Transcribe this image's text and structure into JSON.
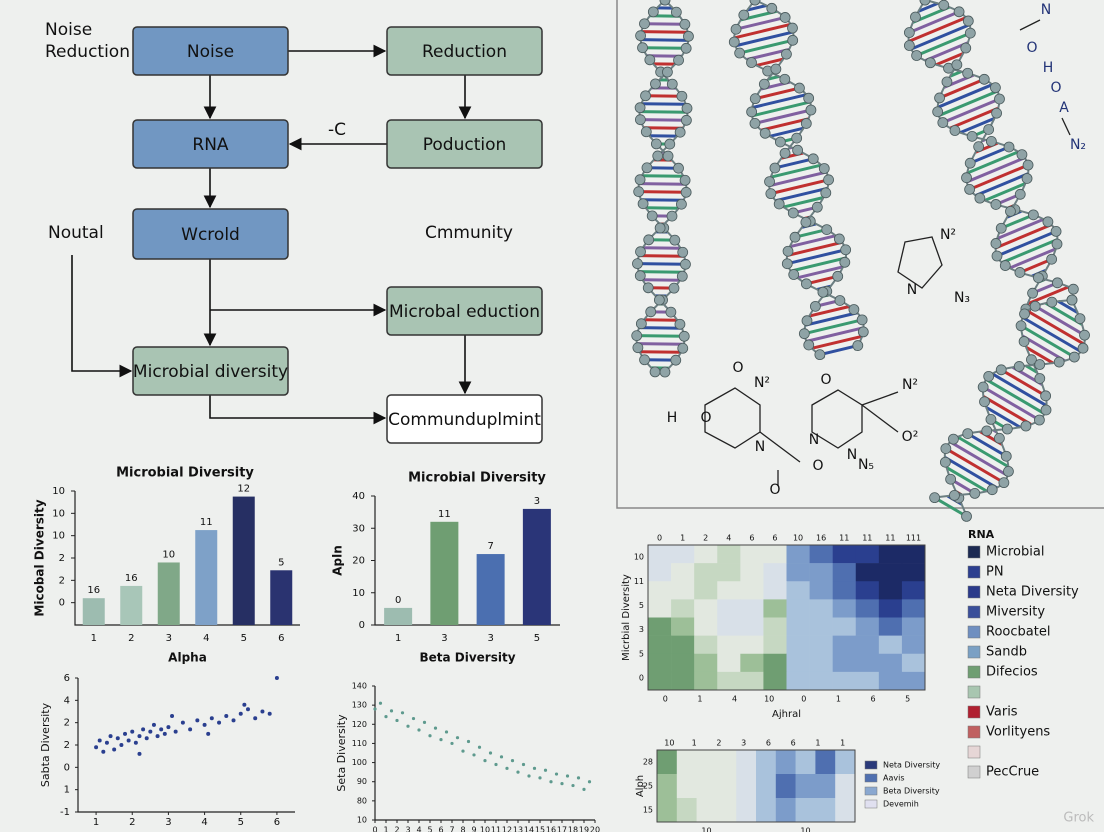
{
  "flowchart": {
    "nodes": [
      {
        "label": "Noise"
      },
      {
        "label": "Reduction"
      },
      {
        "label": "RNA"
      },
      {
        "label": "Poduction"
      },
      {
        "label": "Wcrold"
      },
      {
        "label": "Microbal eduction"
      },
      {
        "label": "Microbial diversity"
      },
      {
        "label": "Communduplmint"
      }
    ],
    "annotations": [
      "Noise",
      "Reduction",
      "-C",
      "Noutal",
      "Cmmunity"
    ]
  },
  "chem_labels": [
    "N",
    "O",
    "H",
    "O",
    "A",
    "N₂",
    "N²",
    "N",
    "N₃",
    "O",
    "N²",
    "H",
    "O",
    "N",
    "O",
    "O",
    "N²",
    "N",
    "O²",
    "N₅",
    "N",
    "O"
  ],
  "bar_chart_1": {
    "type": "bar",
    "title": "Microbial Diversity",
    "y_label": "Micobal Diversity",
    "x_label": "Alpha",
    "categories": [
      "1",
      "2",
      "3",
      "4",
      "5",
      "6"
    ],
    "values": [
      2.4,
      3.5,
      5.6,
      8.5,
      11.5,
      4.9
    ],
    "colors": [
      "#9dbcb0",
      "#a8c6b8",
      "#80a888",
      "#7ea1c8",
      "#262f63",
      "#2a3370"
    ],
    "annotations": [
      "16",
      "16",
      "10",
      "11",
      "12",
      "5"
    ],
    "ylim": [
      0,
      12
    ],
    "yticks": [
      {
        "value": 12,
        "label": "10"
      },
      10,
      {
        "value": 8,
        "label": "10"
      },
      {
        "value": 6,
        "label": "2"
      },
      {
        "value": 4,
        "label": "2"
      },
      {
        "value": 2,
        "label": "0"
      }
    ]
  },
  "bar_chart_2": {
    "type": "bar",
    "title": "Microbial Diversity",
    "y_label": "Apln",
    "x_label": "Beta Diversity",
    "categories": [
      "1",
      "3",
      "3",
      "5"
    ],
    "values": [
      5.3,
      32,
      22,
      36
    ],
    "colors": [
      "#9dbcb0",
      "#6f9e72",
      "#4b6fb0",
      "#2a3578"
    ],
    "annotations": [
      "0",
      "11",
      "7",
      "3"
    ],
    "ylim": [
      0,
      40
    ],
    "yticks": [
      40,
      30,
      20,
      10,
      0
    ]
  },
  "scatter_1": {
    "type": "scatter",
    "y_label": "Sabta Diversity",
    "color": "#2a3f8f",
    "xlim": [
      0.5,
      6.5
    ],
    "xticks": [
      1,
      2,
      3,
      4,
      5,
      6
    ],
    "ylim": [
      0,
      6
    ],
    "yticks": [
      6,
      {
        "value": 5,
        "label": "4"
      },
      {
        "value": 4,
        "label": "2"
      },
      {
        "value": 3,
        "label": "2"
      },
      {
        "value": 2,
        "label": "0"
      },
      1,
      {
        "value": 0,
        "label": "-1"
      }
    ],
    "x": [
      1.0,
      1.1,
      1.2,
      1.3,
      1.4,
      1.5,
      1.6,
      1.7,
      1.8,
      1.9,
      2.0,
      2.1,
      2.2,
      2.3,
      2.4,
      2.5,
      2.6,
      2.7,
      2.8,
      2.9,
      3.0,
      3.2,
      3.4,
      3.6,
      3.8,
      4.0,
      4.2,
      4.4,
      4.6,
      4.8,
      5.0,
      5.2,
      5.4,
      5.6,
      5.8,
      6.0,
      2.2,
      3.1,
      4.1,
      5.1
    ],
    "y": [
      2.9,
      3.2,
      2.7,
      3.1,
      3.4,
      2.8,
      3.3,
      3.0,
      3.5,
      3.2,
      3.6,
      3.1,
      3.4,
      3.7,
      3.3,
      3.6,
      3.9,
      3.4,
      3.7,
      3.5,
      3.8,
      3.6,
      4.0,
      3.7,
      4.1,
      3.9,
      4.2,
      4.0,
      4.3,
      4.1,
      4.4,
      4.6,
      4.2,
      4.5,
      4.4,
      6.0,
      2.6,
      4.3,
      3.5,
      4.8
    ]
  },
  "scatter_2": {
    "type": "scatter",
    "y_label": "Seta Diversity",
    "color": "#5e9a8e",
    "xlim": [
      0,
      20
    ],
    "xticks": [
      0,
      1,
      2,
      3,
      4,
      5,
      6,
      7,
      8,
      9,
      10,
      11,
      12,
      13,
      14,
      15,
      16,
      17,
      18,
      19,
      20
    ],
    "ylim": [
      70,
      140
    ],
    "yticks": [
      140,
      130,
      120,
      110,
      100,
      90,
      80,
      {
        "value": 70,
        "label": "10"
      }
    ],
    "x": [
      0,
      0.5,
      1,
      1.5,
      2,
      2.5,
      3,
      3.5,
      4,
      4.5,
      5,
      5.5,
      6,
      6.5,
      7,
      7.5,
      8,
      8.5,
      9,
      9.5,
      10,
      10.5,
      11,
      11.5,
      12,
      12.5,
      13,
      13.5,
      14,
      14.5,
      15,
      15.5,
      16,
      16.5,
      17,
      17.5,
      18,
      18.5,
      19,
      19.5
    ],
    "y": [
      128,
      131,
      124,
      127,
      122,
      126,
      119,
      123,
      117,
      121,
      114,
      118,
      112,
      116,
      110,
      113,
      106,
      111,
      104,
      108,
      101,
      105,
      99,
      103,
      97,
      101,
      95,
      99,
      93,
      97,
      92,
      96,
      90,
      94,
      89,
      93,
      88,
      92,
      86,
      90
    ]
  },
  "heatmap": {
    "type": "heatmap",
    "y_label": "Micrbial Diversity",
    "x_label": "Ajhral",
    "top_labels": [
      "0",
      "1",
      "2",
      "4",
      "6",
      "6",
      "10",
      "16",
      "11",
      "11",
      "11",
      "111"
    ],
    "bottom_labels": [
      "0",
      "1",
      "4",
      "10",
      "0",
      "1",
      "6",
      "5"
    ],
    "row_labels": [
      "10",
      "11",
      "5",
      "3",
      "5",
      "0"
    ],
    "values": [
      [
        5,
        5,
        4,
        3,
        4,
        4,
        7,
        8,
        9,
        9,
        10,
        10
      ],
      [
        5,
        4,
        3,
        3,
        4,
        5,
        7,
        7,
        8,
        10,
        10,
        10
      ],
      [
        4,
        4,
        3,
        4,
        4,
        5,
        6,
        7,
        8,
        9,
        10,
        9
      ],
      [
        4,
        3,
        4,
        5,
        5,
        2,
        6,
        6,
        7,
        8,
        9,
        8
      ],
      [
        1,
        2,
        4,
        5,
        5,
        3,
        6,
        6,
        6,
        7,
        8,
        7
      ],
      [
        1,
        1,
        3,
        4,
        4,
        3,
        6,
        6,
        7,
        7,
        6,
        7
      ],
      [
        1,
        1,
        2,
        4,
        2,
        1,
        6,
        6,
        7,
        7,
        7,
        6
      ],
      [
        1,
        1,
        2,
        3,
        3,
        1,
        6,
        6,
        6,
        6,
        7,
        7
      ]
    ],
    "colormap": [
      "#3f7a45",
      "#6f9e72",
      "#9dbf98",
      "#c6d8c2",
      "#e2e8e0",
      "#d8e0e8",
      "#a9c2dc",
      "#7c9cca",
      "#4f6fb0",
      "#2a3f8f",
      "#1c2a66"
    ],
    "legend_title": "RNA",
    "legend": [
      {
        "name": "Microbial",
        "color": "#1c2a52"
      },
      {
        "name": "PN",
        "color": "#2c3f8f"
      },
      {
        "name": "Neta Diversity",
        "color": "#2a3a8a"
      },
      {
        "name": "Miversity",
        "color": "#3a4f9a"
      },
      {
        "name": "Roocbatel",
        "color": "#6f8fc0"
      },
      {
        "name": "Sandb",
        "color": "#7aa0c4"
      },
      {
        "name": "Difecios",
        "color": "#6f9e72"
      },
      {
        "name": null,
        "color": "#a8c6b0"
      },
      {
        "name": "Varis",
        "color": "#b02030"
      },
      {
        "name": "Vorlityens",
        "color": "#c06060"
      },
      {
        "name": null,
        "color": "#e6d6d6"
      },
      {
        "name": "PecCrue",
        "color": "#d0d0d0"
      }
    ]
  },
  "heatmap_small": {
    "type": "heatmap",
    "y_label": "Alph",
    "top_labels": [
      "10",
      "1",
      "2",
      "3",
      "6",
      "6",
      "1",
      "1"
    ],
    "bottom_labels": [
      "10",
      "10"
    ],
    "row_labels": [
      "28",
      "25",
      "15"
    ],
    "values": [
      [
        1,
        4,
        4,
        4,
        5,
        6,
        7,
        6,
        8,
        6
      ],
      [
        2,
        4,
        4,
        4,
        5,
        6,
        8,
        7,
        7,
        5
      ],
      [
        2,
        3,
        4,
        4,
        5,
        6,
        7,
        6,
        6,
        5
      ]
    ],
    "colormap": [
      "#3f7a45",
      "#6f9e72",
      "#9dbf98",
      "#c6d8c2",
      "#e2e8e0",
      "#d8e0e8",
      "#a9c2dc",
      "#7c9cca",
      "#4f6fb0",
      "#2a3f8f",
      "#1c2a66"
    ],
    "legend": [
      {
        "name": "Neta Diversity",
        "color": "#2a3a7a"
      },
      {
        "name": "Aavis",
        "color": "#5070b0"
      },
      {
        "name": "Beta Diversity",
        "color": "#8aa8d0"
      },
      {
        "name": "Devemih",
        "color": "#e0e0f0"
      }
    ]
  },
  "watermark": "Grok"
}
